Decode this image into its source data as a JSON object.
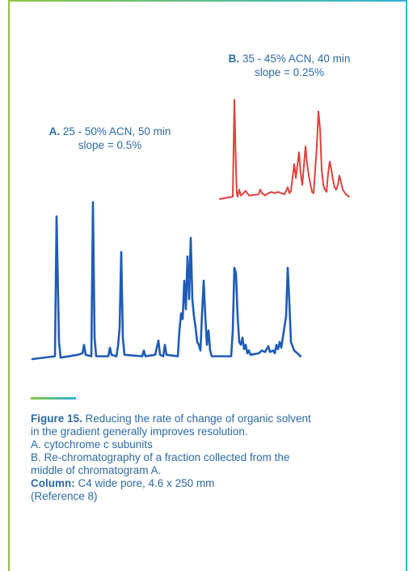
{
  "frame_colors": {
    "left": "#8cc63f",
    "right": "#2cb5d6"
  },
  "chart_data": [
    {
      "type": "line",
      "label_bold": "A.",
      "label_rest": " 25 - 50% ACN, 50 min",
      "label_line2": "slope = 0.5%",
      "color": "#1f5cb8",
      "series": [
        {
          "values": [
            [
              0,
              0
            ],
            [
              14,
              0.02
            ],
            [
              15,
              1.0
            ],
            [
              16.5,
              0.12
            ],
            [
              17.5,
              0.01
            ],
            [
              28,
              0.03
            ],
            [
              31,
              0.04
            ],
            [
              32,
              0.1
            ],
            [
              33,
              0.03
            ],
            [
              36.5,
              0.02
            ],
            [
              37.5,
              1.1
            ],
            [
              38.5,
              0.15
            ],
            [
              39.5,
              0.02
            ],
            [
              47,
              0.02
            ],
            [
              48,
              0.08
            ],
            [
              49,
              0.03
            ],
            [
              52,
              0.02
            ],
            [
              53,
              0.09
            ],
            [
              54,
              0.22
            ],
            [
              55,
              0.75
            ],
            [
              56,
              0.15
            ],
            [
              57,
              0.03
            ],
            [
              68,
              0.02
            ],
            [
              69,
              0.06
            ],
            [
              70,
              0.02
            ],
            [
              76,
              0.03
            ],
            [
              78,
              0.13
            ],
            [
              79,
              0.03
            ],
            [
              81,
              0.02
            ],
            [
              82,
              0.1
            ],
            [
              83,
              0.03
            ],
            [
              90,
              0.02
            ],
            [
              91,
              0.2
            ],
            [
              92,
              0.32
            ],
            [
              93,
              0.28
            ],
            [
              94,
              0.55
            ],
            [
              95,
              0.35
            ],
            [
              96,
              0.72
            ],
            [
              97,
              0.42
            ],
            [
              98,
              0.85
            ],
            [
              99,
              0.42
            ],
            [
              100,
              0.3
            ],
            [
              101,
              0.22
            ],
            [
              102,
              0.12
            ],
            [
              103,
              0.1
            ],
            [
              104,
              0.06
            ],
            [
              105,
              0.32
            ],
            [
              106,
              0.55
            ],
            [
              107,
              0.3
            ],
            [
              108,
              0.1
            ],
            [
              109,
              0.2
            ],
            [
              110,
              0.06
            ],
            [
              111,
              0.02
            ],
            [
              123,
              0.02
            ],
            [
              124,
              0.2
            ],
            [
              125,
              0.64
            ],
            [
              126,
              0.6
            ],
            [
              127,
              0.3
            ],
            [
              128,
              0.12
            ],
            [
              129,
              0.1
            ],
            [
              130,
              0.15
            ],
            [
              131,
              0.07
            ],
            [
              132,
              0.1
            ],
            [
              133,
              0.04
            ],
            [
              134,
              0.06
            ],
            [
              135,
              0.03
            ],
            [
              140,
              0.04
            ],
            [
              142,
              0.06
            ],
            [
              144,
              0.05
            ],
            [
              146,
              0.09
            ],
            [
              147,
              0.05
            ],
            [
              149,
              0.06
            ],
            [
              150,
              0.04
            ],
            [
              151,
              0.1
            ],
            [
              152,
              0.07
            ],
            [
              153,
              0.12
            ],
            [
              154,
              0.08
            ],
            [
              157,
              0.3
            ],
            [
              158,
              0.64
            ],
            [
              159,
              0.4
            ],
            [
              160,
              0.12
            ],
            [
              162,
              0.06
            ],
            [
              164,
              0.04
            ],
            [
              166,
              0.02
            ]
          ]
        }
      ],
      "xlim": [
        0,
        166
      ],
      "ylim": [
        0,
        1.1
      ]
    },
    {
      "type": "line",
      "label_bold": "B.",
      "label_rest": " 35 - 45% ACN, 40 min",
      "label_line2": "slope = 0.25%",
      "color": "#e0403c",
      "series": [
        {
          "values": [
            [
              0,
              0
            ],
            [
              8,
              0.02
            ],
            [
              9,
              0.85
            ],
            [
              10,
              0.25
            ],
            [
              10.5,
              0.05
            ],
            [
              11,
              0.02
            ],
            [
              12,
              0.08
            ],
            [
              13,
              0.03
            ],
            [
              14,
              0.04
            ],
            [
              16,
              0.07
            ],
            [
              17,
              0.05
            ],
            [
              18,
              0.03
            ],
            [
              24,
              0.04
            ],
            [
              25,
              0.08
            ],
            [
              26,
              0.05
            ],
            [
              28,
              0.03
            ],
            [
              30,
              0.05
            ],
            [
              32,
              0.06
            ],
            [
              34,
              0.05
            ],
            [
              36,
              0.06
            ],
            [
              38,
              0.05
            ],
            [
              40,
              0.04
            ],
            [
              42,
              0.1
            ],
            [
              43,
              0.05
            ],
            [
              44,
              0.07
            ],
            [
              46,
              0.3
            ],
            [
              47,
              0.18
            ],
            [
              49,
              0.4
            ],
            [
              50,
              0.22
            ],
            [
              51,
              0.12
            ],
            [
              53,
              0.45
            ],
            [
              54,
              0.3
            ],
            [
              55,
              0.2
            ],
            [
              57,
              0.06
            ],
            [
              58,
              0.05
            ],
            [
              60,
              0.45
            ],
            [
              61,
              0.75
            ],
            [
              62,
              0.6
            ],
            [
              63,
              0.25
            ],
            [
              64,
              0.12
            ],
            [
              65,
              0.08
            ],
            [
              66,
              0.06
            ],
            [
              67,
              0.22
            ],
            [
              68,
              0.32
            ],
            [
              69,
              0.25
            ],
            [
              70,
              0.16
            ],
            [
              71,
              0.1
            ],
            [
              72,
              0.08
            ],
            [
              73,
              0.12
            ],
            [
              74,
              0.2
            ],
            [
              75,
              0.14
            ],
            [
              76,
              0.08
            ],
            [
              78,
              0.04
            ],
            [
              80,
              0.02
            ]
          ]
        }
      ],
      "xlim": [
        0,
        80
      ],
      "ylim": [
        0,
        0.9
      ]
    }
  ],
  "caption": {
    "figure_label": "Figure 15.",
    "figure_text": " Reducing the rate of change of organic solvent",
    "line2": "in the gradient generally improves resolution.",
    "line3": "A. cytochrome c subunits",
    "line4": "B. Re-chromatography of a fraction collected from the",
    "line5": "middle of chromatogram A.",
    "column_label": "Column:",
    "column_text": " C4 wide pore, 4.6 x 250 mm",
    "reference": "(Reference 8)"
  }
}
